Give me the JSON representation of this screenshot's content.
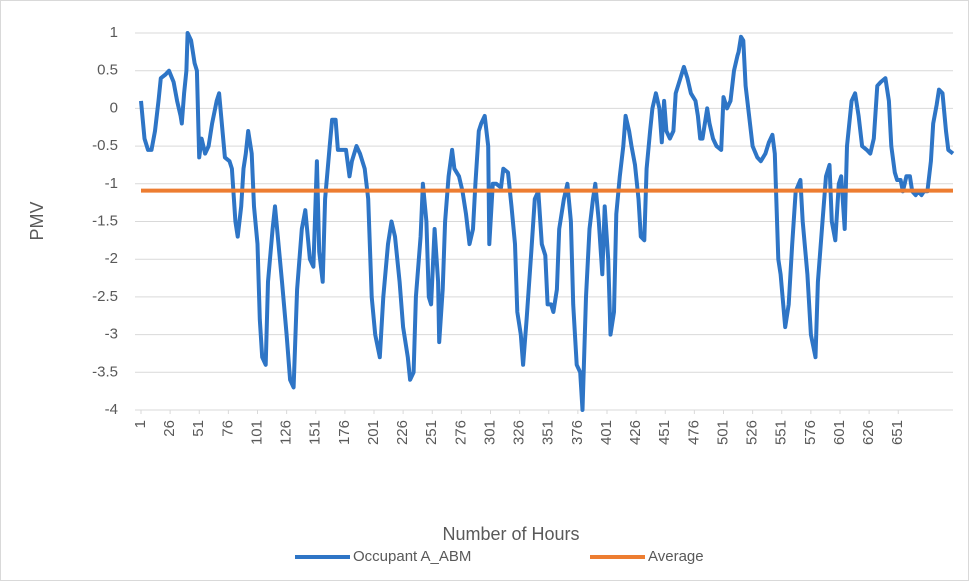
{
  "chart_data": {
    "type": "line",
    "y_label": "PMV",
    "x_label": "Number of Hours",
    "xlim": [
      1,
      698
    ],
    "xticks": [
      1,
      26,
      51,
      76,
      101,
      126,
      151,
      176,
      201,
      226,
      251,
      276,
      301,
      326,
      351,
      376,
      401,
      426,
      451,
      476,
      501,
      526,
      551,
      576,
      601,
      626,
      651
    ],
    "ylim": [
      -4,
      1
    ],
    "yticks": [
      1,
      0.5,
      0,
      -0.5,
      -1,
      -1.5,
      -2,
      -2.5,
      -3,
      -3.5,
      -4
    ],
    "grid": true,
    "legend": "bottom",
    "series": [
      {
        "name": "Occupant A_ABM",
        "color": "#2e75c6",
        "x": [
          1,
          4,
          7,
          10,
          13,
          16,
          18,
          22,
          25,
          29,
          32,
          35,
          36,
          38,
          40,
          41,
          44,
          47,
          49,
          51,
          53,
          56,
          59,
          62,
          66,
          68,
          71,
          73,
          77,
          79,
          82,
          84,
          87,
          89,
          91,
          93,
          96,
          98,
          101,
          103,
          105,
          108,
          110,
          114,
          116,
          119,
          122,
          126,
          129,
          132,
          135,
          139,
          142,
          146,
          149,
          152,
          154,
          157,
          159,
          163,
          165,
          168,
          170,
          174,
          177,
          180,
          182,
          186,
          189,
          193,
          196,
          199,
          202,
          206,
          209,
          213,
          216,
          219,
          223,
          226,
          230,
          232,
          235,
          237,
          241,
          243,
          246,
          248,
          250,
          253,
          256,
          257,
          260,
          262,
          265,
          268,
          270,
          274,
          277,
          280,
          283,
          286,
          288,
          291,
          293,
          296,
          299,
          300,
          303,
          306,
          310,
          312,
          316,
          319,
          322,
          324,
          327,
          329,
          332,
          336,
          339,
          342,
          345,
          348,
          350,
          353,
          355,
          358,
          360,
          364,
          367,
          370,
          372,
          375,
          378,
          380,
          383,
          386,
          389,
          391,
          394,
          397,
          399,
          402,
          404,
          407,
          409,
          412,
          415,
          417,
          420,
          422,
          425,
          428,
          430,
          433,
          435,
          438,
          440,
          443,
          446,
          448,
          450,
          452,
          455,
          458,
          460,
          464,
          467,
          470,
          473,
          477,
          479,
          481,
          483,
          487,
          489,
          492,
          495,
          499,
          501,
          504,
          507,
          510,
          513,
          514,
          516,
          518,
          520,
          523,
          526,
          530,
          533,
          537,
          540,
          543,
          545,
          548,
          550,
          554,
          557,
          560,
          563,
          567,
          569,
          573,
          576,
          580,
          582,
          586,
          589,
          592,
          594,
          597,
          600,
          602,
          605,
          607,
          611,
          614,
          617,
          620,
          624,
          627,
          630,
          633,
          636,
          640,
          643,
          645,
          648,
          650,
          653,
          655,
          658,
          661,
          663,
          666,
          668,
          671,
          673,
          676,
          679,
          681,
          684,
          686,
          689,
          692,
          694,
          698
        ],
        "values": [
          0.1,
          -0.4,
          -0.55,
          -0.55,
          -0.3,
          0.1,
          0.4,
          0.45,
          0.5,
          0.35,
          0.1,
          -0.1,
          -0.2,
          0.2,
          0.5,
          1.0,
          0.9,
          0.6,
          0.5,
          -0.65,
          -0.4,
          -0.6,
          -0.5,
          -0.2,
          0.1,
          0.2,
          -0.3,
          -0.65,
          -0.7,
          -0.8,
          -1.5,
          -1.7,
          -1.3,
          -0.8,
          -0.6,
          -0.3,
          -0.6,
          -1.3,
          -1.8,
          -2.8,
          -3.3,
          -3.4,
          -2.3,
          -1.6,
          -1.3,
          -1.8,
          -2.3,
          -3.0,
          -3.6,
          -3.7,
          -2.4,
          -1.6,
          -1.35,
          -2.0,
          -2.1,
          -0.7,
          -1.9,
          -2.3,
          -1.2,
          -0.5,
          -0.15,
          -0.15,
          -0.55,
          -0.55,
          -0.55,
          -0.9,
          -0.7,
          -0.5,
          -0.6,
          -0.8,
          -1.2,
          -2.5,
          -3.0,
          -3.3,
          -2.5,
          -1.8,
          -1.5,
          -1.7,
          -2.3,
          -2.9,
          -3.3,
          -3.6,
          -3.5,
          -2.5,
          -1.7,
          -1.0,
          -1.5,
          -2.5,
          -2.6,
          -1.6,
          -2.3,
          -3.1,
          -2.4,
          -1.5,
          -0.9,
          -0.55,
          -0.8,
          -0.9,
          -1.1,
          -1.4,
          -1.8,
          -1.6,
          -1.0,
          -0.3,
          -0.2,
          -0.1,
          -0.5,
          -1.8,
          -1.0,
          -1.0,
          -1.05,
          -0.8,
          -0.85,
          -1.3,
          -1.8,
          -2.7,
          -3.0,
          -3.4,
          -2.8,
          -1.9,
          -1.2,
          -1.1,
          -1.8,
          -1.95,
          -2.6,
          -2.6,
          -2.7,
          -2.4,
          -1.6,
          -1.2,
          -1.0,
          -1.5,
          -2.6,
          -3.4,
          -3.5,
          -4.0,
          -2.5,
          -1.6,
          -1.2,
          -1.0,
          -1.5,
          -2.2,
          -1.3,
          -2.0,
          -3.0,
          -2.7,
          -1.4,
          -0.9,
          -0.5,
          -0.1,
          -0.3,
          -0.5,
          -0.75,
          -1.2,
          -1.7,
          -1.75,
          -0.8,
          -0.3,
          0.0,
          0.2,
          0.0,
          -0.45,
          0.1,
          -0.3,
          -0.4,
          -0.3,
          0.2,
          0.4,
          0.55,
          0.4,
          0.2,
          0.1,
          -0.1,
          -0.4,
          -0.4,
          0.0,
          -0.2,
          -0.4,
          -0.5,
          -0.55,
          0.15,
          0.0,
          0.1,
          0.5,
          0.7,
          0.75,
          0.95,
          0.9,
          0.3,
          -0.1,
          -0.5,
          -0.65,
          -0.7,
          -0.6,
          -0.45,
          -0.35,
          -0.6,
          -2.0,
          -2.2,
          -2.9,
          -2.6,
          -1.8,
          -1.1,
          -0.95,
          -1.5,
          -2.2,
          -3.0,
          -3.3,
          -2.3,
          -1.5,
          -0.9,
          -0.75,
          -1.5,
          -1.75,
          -1.0,
          -0.9,
          -1.6,
          -0.5,
          0.1,
          0.2,
          -0.1,
          -0.5,
          -0.55,
          -0.6,
          -0.4,
          0.3,
          0.35,
          0.4,
          0.1,
          -0.5,
          -0.85,
          -0.95,
          -0.95,
          -1.1,
          -0.9,
          -0.9,
          -1.1,
          -1.15,
          -1.1,
          -1.15,
          -1.1,
          -1.1,
          -0.7,
          -0.2,
          0.05,
          0.25,
          0.2,
          -0.3,
          -0.55,
          -0.6
        ]
      },
      {
        "name": "Average",
        "color": "#ed7d31",
        "x": [
          1,
          698
        ],
        "values": [
          -1.09,
          -1.09
        ]
      }
    ]
  }
}
